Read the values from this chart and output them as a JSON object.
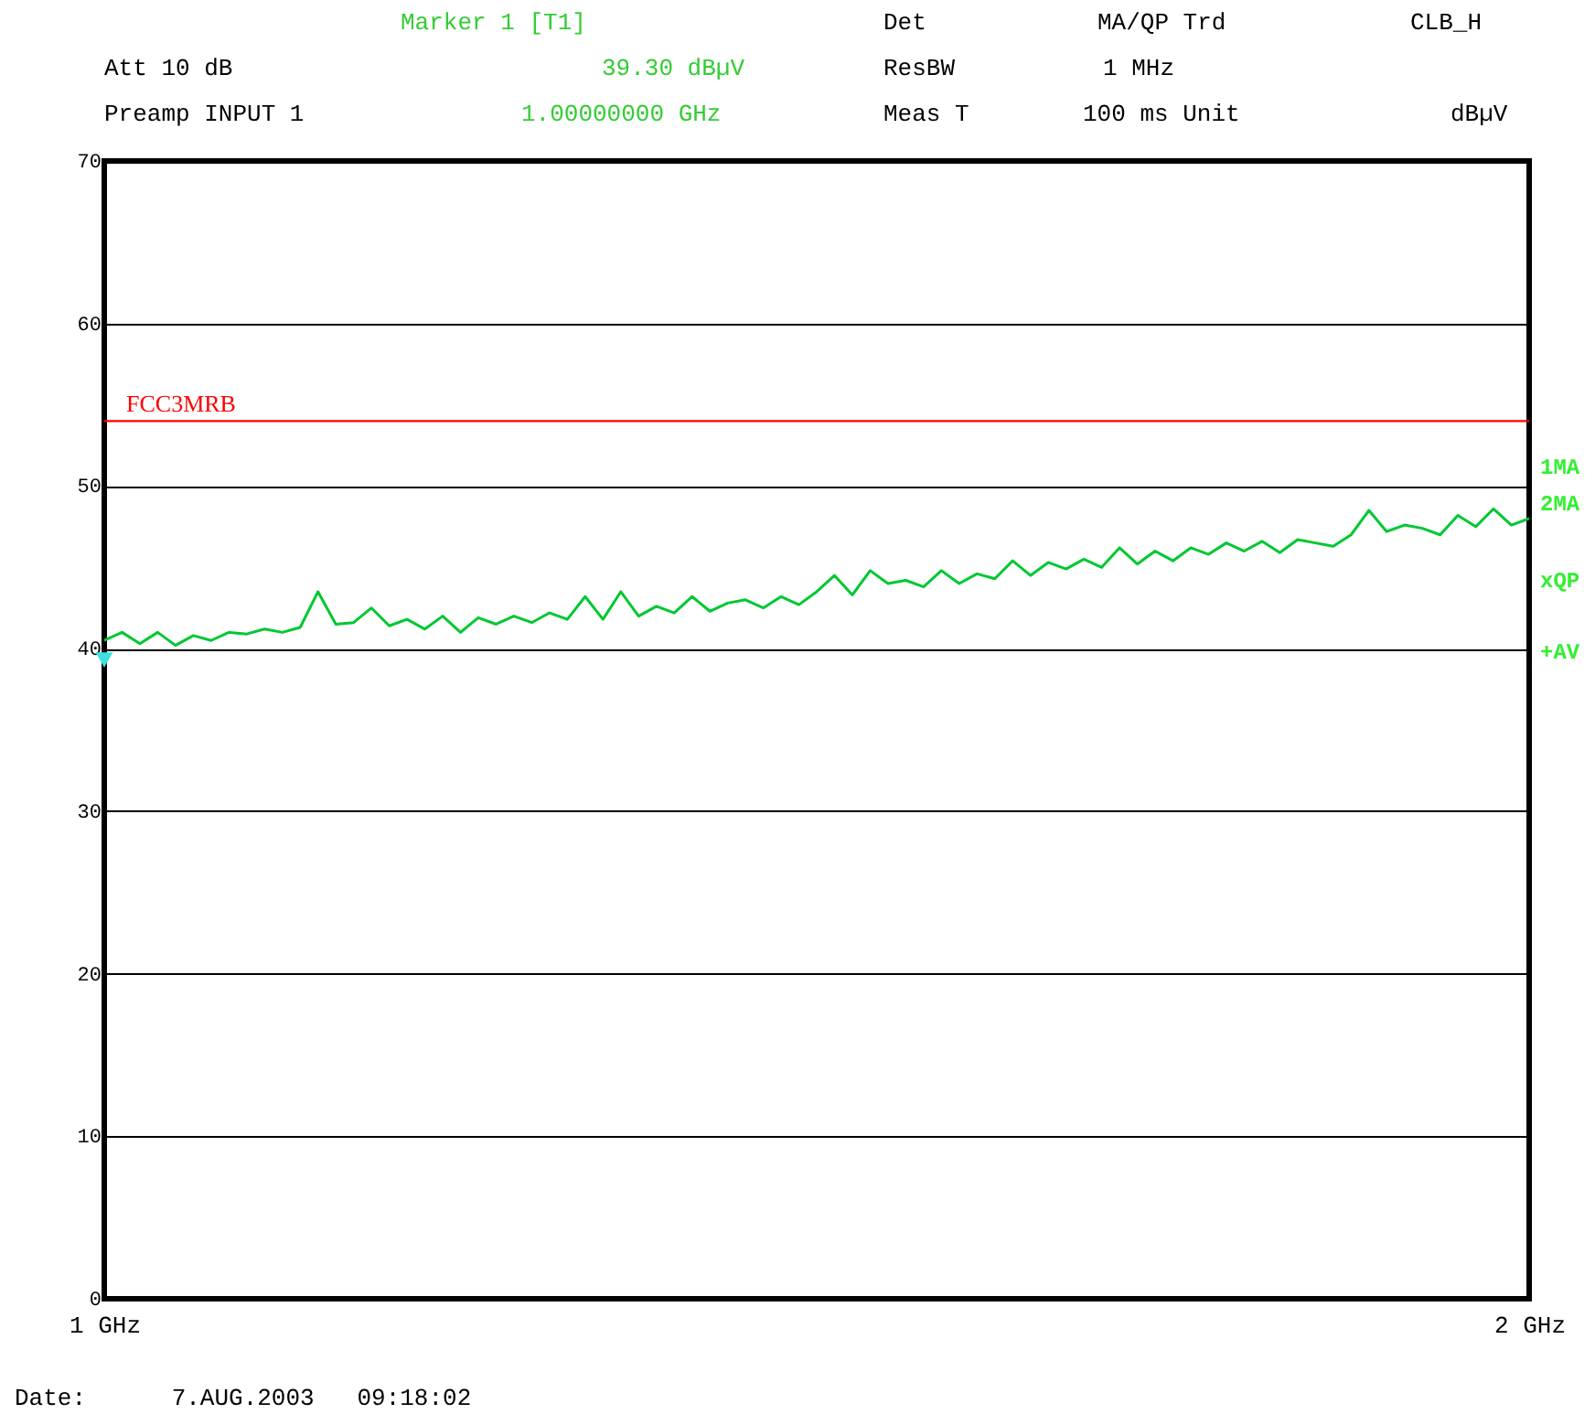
{
  "chart_data": {
    "type": "line",
    "annotations": [
      "Marker 1 [T1]",
      "Det",
      "MA/QP Trd",
      "CLB_H",
      "Att 10 dB",
      "39.30 dBµV",
      "ResBW",
      "1 MHz",
      "Preamp INPUT 1",
      "1.00000000 GHz",
      "Meas T",
      "100 ms Unit",
      "dBµV",
      "1MA",
      "2MA",
      "xQP",
      "+AV",
      "Date:      7.AUG.2003   09:18:02"
    ],
    "xlim": [
      1,
      2
    ],
    "xticks": [
      {
        "value": 1,
        "label": "1 GHz"
      },
      {
        "value": 2,
        "label": "2 GHz"
      }
    ],
    "ylim": [
      0,
      70
    ],
    "yticks": [
      0,
      10,
      20,
      30,
      40,
      50,
      60,
      70
    ],
    "grid": "y",
    "series": [
      {
        "color": "#00c832",
        "x": [
          1.0,
          1.0125,
          1.025,
          1.0375,
          1.05,
          1.0625,
          1.075,
          1.0875,
          1.1,
          1.1125,
          1.125,
          1.1375,
          1.15,
          1.1625,
          1.175,
          1.1875,
          1.2,
          1.2125,
          1.225,
          1.2375,
          1.25,
          1.2625,
          1.275,
          1.2875,
          1.3,
          1.3125,
          1.325,
          1.3375,
          1.35,
          1.3625,
          1.375,
          1.3875,
          1.4,
          1.4125,
          1.425,
          1.4375,
          1.45,
          1.4625,
          1.475,
          1.4875,
          1.5,
          1.5125,
          1.525,
          1.5375,
          1.55,
          1.5625,
          1.575,
          1.5875,
          1.6,
          1.6125,
          1.625,
          1.6375,
          1.65,
          1.6625,
          1.675,
          1.6875,
          1.7,
          1.7125,
          1.725,
          1.7375,
          1.75,
          1.7625,
          1.775,
          1.7875,
          1.8,
          1.8125,
          1.825,
          1.8375,
          1.85,
          1.8625,
          1.875,
          1.8875,
          1.9,
          1.9125,
          1.925,
          1.9375,
          1.95,
          1.9625,
          1.975,
          1.9875,
          2.0
        ],
        "values": [
          40.5,
          41.0,
          40.3,
          41.0,
          40.2,
          40.8,
          40.5,
          41.0,
          40.9,
          41.2,
          41.0,
          41.3,
          43.5,
          41.5,
          41.6,
          42.5,
          41.4,
          41.8,
          41.2,
          42.0,
          41.0,
          41.9,
          41.5,
          42.0,
          41.6,
          42.2,
          41.8,
          43.2,
          41.8,
          43.5,
          42.0,
          42.6,
          42.2,
          43.2,
          42.3,
          42.8,
          43.0,
          42.5,
          43.2,
          42.7,
          43.5,
          44.5,
          43.3,
          44.8,
          44.0,
          44.2,
          43.8,
          44.8,
          44.0,
          44.6,
          44.3,
          45.4,
          44.5,
          45.3,
          44.9,
          45.5,
          45.0,
          46.2,
          45.2,
          46.0,
          45.4,
          46.2,
          45.8,
          46.5,
          46.0,
          46.6,
          45.9,
          46.7,
          46.5,
          46.3,
          47.0,
          48.5,
          47.2,
          47.6,
          47.4,
          47.0,
          48.2,
          47.5,
          48.6,
          47.6,
          48.0
        ]
      },
      {
        "type": "scatter",
        "marker": "triangle",
        "color": "#40e0e0",
        "x": [
          1.0
        ],
        "values": [
          39.3
        ]
      }
    ],
    "ref_lines": [
      {
        "axis": "y",
        "value": 54,
        "label": "FCC3MRB",
        "color": "#ff0000"
      }
    ]
  }
}
